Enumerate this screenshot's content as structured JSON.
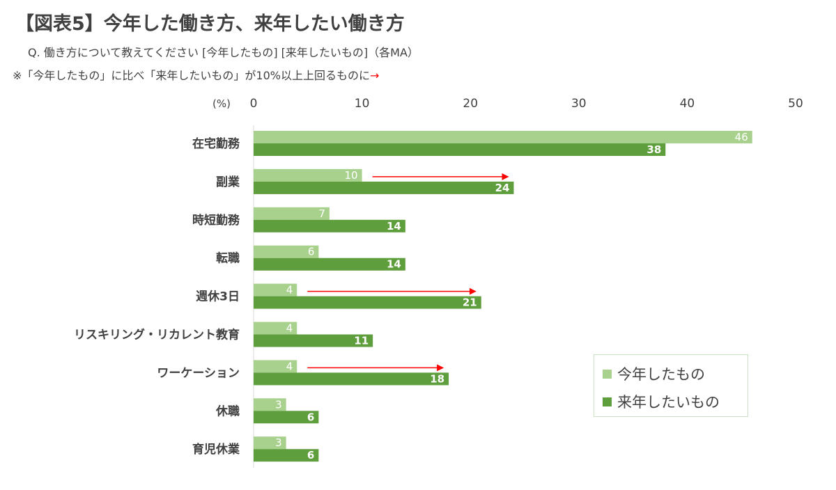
{
  "page": {
    "title": "【図表5】今年した働き方、来年したい働き方",
    "subtitle": "Q. 働き方について教えてください [今年したもの] [来年したいもの]（各MA）",
    "note_text": "※「今年したもの」に比べ「来年したいもの」が10%以上上回るものに",
    "note_arrow": "→"
  },
  "chart_data": {
    "type": "bar",
    "orientation": "horizontal",
    "title": "",
    "unit_label": "(%)",
    "xlim": [
      0,
      50
    ],
    "xticks": [
      0,
      10,
      20,
      30,
      40,
      50
    ],
    "xaxis_position": "top",
    "grid": false,
    "legend_position": "bottom-right",
    "categories": [
      "在宅勤務",
      "副業",
      "時短勤務",
      "転職",
      "週休3日",
      "リスキリング・リカレント教育",
      "ワーケーション",
      "休職",
      "育児休業"
    ],
    "series": [
      {
        "name": "今年したもの",
        "color": "#a9d18e",
        "values": [
          46,
          10,
          7,
          6,
          4,
          4,
          4,
          3,
          3
        ]
      },
      {
        "name": "来年したいもの",
        "color": "#5f9e3d",
        "values": [
          38,
          24,
          14,
          14,
          21,
          11,
          18,
          6,
          6
        ]
      }
    ],
    "highlight_arrows": {
      "color": "#ff0000",
      "categories": [
        "副業",
        "週休3日",
        "ワーケーション"
      ]
    }
  }
}
